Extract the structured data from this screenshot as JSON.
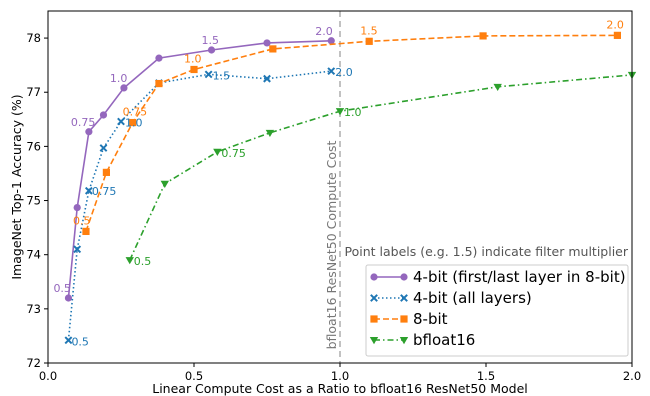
{
  "chart_data": {
    "type": "line",
    "xlabel": "Linear Compute Cost as a Ratio to bfloat16 ResNet50 Model",
    "ylabel": "ImageNet Top-1 Accuracy (%)",
    "xlim": [
      0.0,
      2.0
    ],
    "ylim": [
      72.0,
      78.5
    ],
    "xticks": [
      "0.0",
      "0.5",
      "1.0",
      "1.5",
      "2.0"
    ],
    "yticks": [
      "72",
      "73",
      "74",
      "75",
      "76",
      "77",
      "78"
    ],
    "vline": {
      "x": 1.0,
      "label": "bfloat16 ResNet50 Compute Cost"
    },
    "annotation": "Point labels (e.g. 1.5) indicate filter multiplier",
    "legend_position": "lower-right",
    "series": [
      {
        "name": "4-bit (first/last layer in 8-bit)",
        "color": "#9467bd",
        "marker": "circle",
        "linestyle": "solid",
        "x": [
          0.07,
          0.1,
          0.14,
          0.19,
          0.26,
          0.38,
          0.56,
          0.75,
          0.97
        ],
        "y": [
          73.2,
          74.87,
          76.27,
          76.58,
          77.08,
          77.63,
          77.78,
          77.91,
          77.95
        ],
        "point_labels": [
          "0.5",
          "",
          "0.75",
          "",
          "1.0",
          "",
          "1.5",
          "",
          "2.0"
        ]
      },
      {
        "name": "4-bit (all layers)",
        "color": "#1f77b4",
        "marker": "x",
        "linestyle": "dotted",
        "x": [
          0.07,
          0.1,
          0.14,
          0.19,
          0.25,
          0.38,
          0.55,
          0.75,
          0.97
        ],
        "y": [
          72.42,
          74.1,
          75.18,
          75.97,
          76.46,
          77.17,
          77.33,
          77.25,
          77.39
        ],
        "point_labels": [
          "0.5",
          "",
          "0.75",
          "",
          "1.0",
          "",
          "1.5",
          "",
          "2.0"
        ]
      },
      {
        "name": "8-bit",
        "color": "#ff7f0e",
        "marker": "square",
        "linestyle": "dashed",
        "x": [
          0.13,
          0.2,
          0.29,
          0.38,
          0.5,
          0.77,
          1.1,
          1.49,
          1.95
        ],
        "y": [
          74.43,
          75.52,
          76.44,
          77.16,
          77.42,
          77.8,
          77.94,
          78.04,
          78.05
        ],
        "point_labels": [
          "0.5",
          "",
          "0.75",
          "",
          "1.0",
          "",
          "1.5",
          "",
          "2.0"
        ]
      },
      {
        "name": "bfloat16",
        "color": "#2ca02c",
        "marker": "triangle-down",
        "linestyle": "dashdot",
        "x": [
          0.28,
          0.4,
          0.58,
          0.76,
          1.0,
          1.54,
          2.0
        ],
        "y": [
          73.9,
          75.31,
          75.9,
          76.25,
          76.65,
          77.1,
          77.32
        ],
        "point_labels": [
          "0.5",
          "",
          "0.75",
          "",
          "1.0",
          "",
          ""
        ]
      }
    ]
  }
}
